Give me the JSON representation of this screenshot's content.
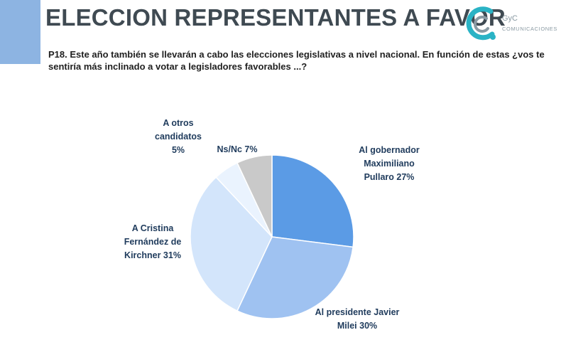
{
  "header": {
    "title": "ELECCION REPRESENTANTES A FAVOR",
    "question": "P18. Este año también se llevarán a cabo las elecciones legislativas a nivel nacional. En función de estas ¿vos te sentiría más inclinado a votar a legisladores favorables ...?"
  },
  "logo": {
    "brand": "GyC",
    "sub": "COMUNICACIONES",
    "colors": [
      "#2ab3c5",
      "#8a9aa3"
    ]
  },
  "chart_data": {
    "type": "pie",
    "start_angle_deg": 0,
    "direction": "clockwise",
    "slices": [
      {
        "label": "Al gobernador Maximiliano Pullaro 27%",
        "lines": [
          "Al gobernador",
          "Maximiliano",
          "Pullaro 27%"
        ],
        "value": 27,
        "color": "#5b9be5"
      },
      {
        "label": "Al presidente Javier Milei 30%",
        "lines": [
          "Al presidente Javier",
          "Milei 30%"
        ],
        "value": 30,
        "color": "#9fc2f1"
      },
      {
        "label": "A Cristina Fernández de Kirchner 31%",
        "lines": [
          "A Cristina",
          "Fernández de",
          "Kirchner 31%"
        ],
        "value": 31,
        "color": "#d3e5fb"
      },
      {
        "label": "A otros candidatos 5%",
        "lines": [
          "A otros",
          "candidatos",
          "5%"
        ],
        "value": 5,
        "color": "#eaf3fe"
      },
      {
        "label": "Ns/Nc 7%",
        "lines": [
          "Ns/Nc 7%"
        ],
        "value": 7,
        "color": "#c9c9c9"
      }
    ]
  }
}
